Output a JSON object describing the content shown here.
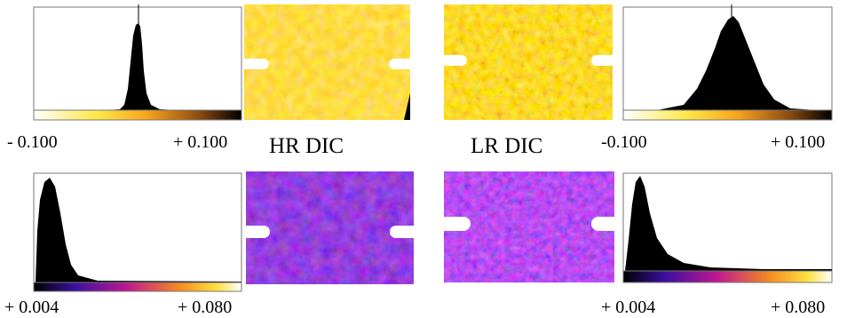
{
  "captions": {
    "hr": "HR DIC",
    "lr": "LR DIC"
  },
  "scales": {
    "top_left": {
      "min_label": "- 0.100",
      "max_label": "+ 0.100"
    },
    "top_right": {
      "min_label": "-0.100",
      "max_label": "+ 0.100"
    },
    "bottom_left": {
      "min_label": "+ 0.004",
      "max_label": "+ 0.080"
    },
    "bottom_right": {
      "min_label": "+ 0.004",
      "max_label": "+ 0.080"
    }
  }
}
